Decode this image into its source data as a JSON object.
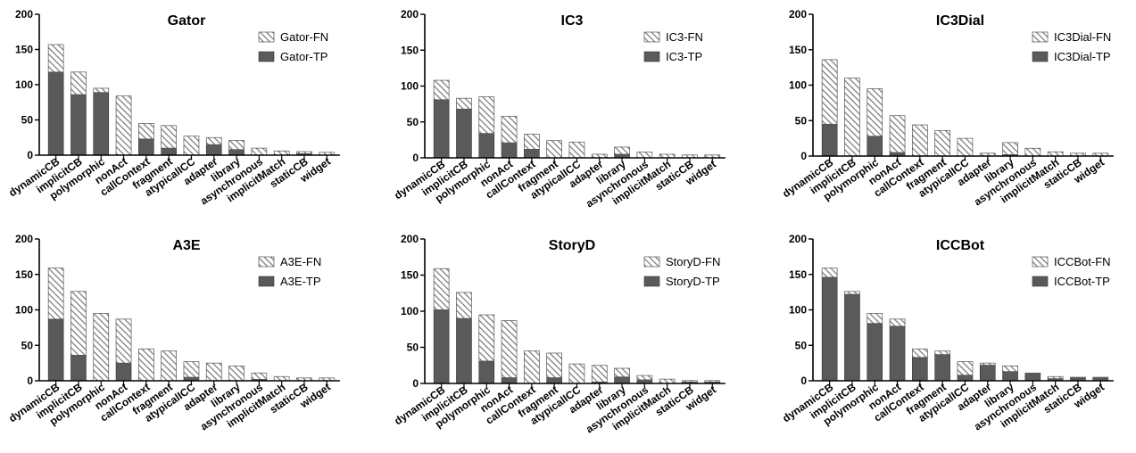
{
  "figure": {
    "colors": {
      "tp": "#5a5a5a",
      "fn_fill": "#ffffff",
      "fn_hatch": "#777777",
      "axis": "#000000"
    },
    "categories": [
      "dynamicCB",
      "implicitCB",
      "polymorphic",
      "nonAct",
      "callContext",
      "fragment",
      "atypicalICC",
      "adapter",
      "library",
      "asynchronous",
      "implicitMatch",
      "staticCB",
      "widget"
    ]
  },
  "chart_data": [
    {
      "type": "bar",
      "stacked": true,
      "title": "Gator",
      "categories": [
        "dynamicCB",
        "implicitCB",
        "polymorphic",
        "nonAct",
        "callContext",
        "fragment",
        "atypicalICC",
        "adapter",
        "library",
        "asynchronous",
        "implicitMatch",
        "staticCB",
        "widget"
      ],
      "ylim": [
        0,
        200
      ],
      "yticks": [
        0,
        50,
        100,
        150,
        200
      ],
      "legend_position": "top-right",
      "series": [
        {
          "name": "Gator-TP",
          "role": "tp",
          "values": [
            118,
            86,
            89,
            0,
            23,
            10,
            0,
            15,
            8,
            0,
            0,
            2,
            0
          ]
        },
        {
          "name": "Gator-FN",
          "role": "fn",
          "values": [
            39,
            32,
            6,
            84,
            22,
            32,
            27,
            10,
            13,
            10,
            6,
            3,
            4
          ]
        }
      ]
    },
    {
      "type": "bar",
      "stacked": true,
      "title": "IC3",
      "categories": [
        "dynamicCB",
        "implicitCB",
        "polymorphic",
        "nonAct",
        "callContext",
        "fragment",
        "atypicalICC",
        "adapter",
        "library",
        "asynchronous",
        "implicitMatch",
        "staticCB",
        "widget"
      ],
      "ylim": [
        0,
        200
      ],
      "yticks": [
        0,
        50,
        100,
        150,
        200
      ],
      "legend_position": "top-right",
      "series": [
        {
          "name": "IC3-TP",
          "role": "tp",
          "values": [
            81,
            68,
            34,
            21,
            12,
            0,
            0,
            0,
            5,
            0,
            0,
            0,
            0
          ]
        },
        {
          "name": "IC3-FN",
          "role": "fn",
          "values": [
            27,
            15,
            51,
            37,
            21,
            24,
            22,
            5,
            10,
            8,
            5,
            4,
            4
          ]
        }
      ]
    },
    {
      "type": "bar",
      "stacked": true,
      "title": "IC3Dial",
      "categories": [
        "dynamicCB",
        "implicitCB",
        "polymorphic",
        "nonAct",
        "callContext",
        "fragment",
        "atypicalICC",
        "adapter",
        "library",
        "asynchronous",
        "implicitMatch",
        "staticCB",
        "widget"
      ],
      "ylim": [
        0,
        200
      ],
      "yticks": [
        0,
        50,
        100,
        150,
        200
      ],
      "legend_position": "top-right",
      "series": [
        {
          "name": "IC3Dial-TP",
          "role": "tp",
          "values": [
            45,
            0,
            28,
            5,
            0,
            0,
            0,
            0,
            2,
            0,
            0,
            0,
            0
          ]
        },
        {
          "name": "IC3Dial-FN",
          "role": "fn",
          "values": [
            91,
            110,
            67,
            52,
            44,
            36,
            25,
            4,
            17,
            11,
            6,
            4,
            4
          ]
        }
      ]
    },
    {
      "type": "bar",
      "stacked": true,
      "title": "A3E",
      "categories": [
        "dynamicCB",
        "implicitCB",
        "polymorphic",
        "nonAct",
        "callContext",
        "fragment",
        "atypicalICC",
        "adapter",
        "library",
        "asynchronous",
        "implicitMatch",
        "staticCB",
        "widget"
      ],
      "ylim": [
        0,
        200
      ],
      "yticks": [
        0,
        50,
        100,
        150,
        200
      ],
      "legend_position": "top-right",
      "series": [
        {
          "name": "A3E-TP",
          "role": "tp",
          "values": [
            87,
            36,
            0,
            25,
            0,
            0,
            5,
            0,
            0,
            2,
            0,
            0,
            0
          ]
        },
        {
          "name": "A3E-FN",
          "role": "fn",
          "values": [
            72,
            90,
            95,
            62,
            45,
            42,
            22,
            25,
            21,
            9,
            6,
            4,
            4
          ]
        }
      ]
    },
    {
      "type": "bar",
      "stacked": true,
      "title": "StoryD",
      "categories": [
        "dynamicCB",
        "implicitCB",
        "polymorphic",
        "nonAct",
        "callContext",
        "fragment",
        "atypicalICC",
        "adapter",
        "library",
        "asynchronous",
        "implicitMatch",
        "staticCB",
        "widget"
      ],
      "ylim": [
        0,
        200
      ],
      "yticks": [
        0,
        50,
        100,
        150,
        200
      ],
      "legend_position": "top-right",
      "series": [
        {
          "name": "StoryD-TP",
          "role": "tp",
          "values": [
            102,
            90,
            31,
            8,
            0,
            8,
            0,
            2,
            9,
            5,
            0,
            2,
            2
          ]
        },
        {
          "name": "StoryD-FN",
          "role": "fn",
          "values": [
            57,
            36,
            64,
            79,
            45,
            34,
            27,
            23,
            12,
            6,
            6,
            2,
            2
          ]
        }
      ]
    },
    {
      "type": "bar",
      "stacked": true,
      "title": "ICCBot",
      "categories": [
        "dynamicCB",
        "implicitCB",
        "polymorphic",
        "nonAct",
        "callContext",
        "fragment",
        "atypicalICC",
        "adapter",
        "library",
        "asynchronous",
        "implicitMatch",
        "staticCB",
        "widget"
      ],
      "ylim": [
        0,
        200
      ],
      "yticks": [
        0,
        50,
        100,
        150,
        200
      ],
      "legend_position": "top-right",
      "series": [
        {
          "name": "ICCBot-TP",
          "role": "tp",
          "values": [
            146,
            122,
            81,
            77,
            33,
            37,
            8,
            22,
            13,
            10,
            3,
            4,
            4
          ]
        },
        {
          "name": "ICCBot-FN",
          "role": "fn",
          "values": [
            13,
            4,
            14,
            10,
            12,
            5,
            19,
            3,
            8,
            1,
            3,
            1,
            1
          ]
        }
      ]
    }
  ]
}
